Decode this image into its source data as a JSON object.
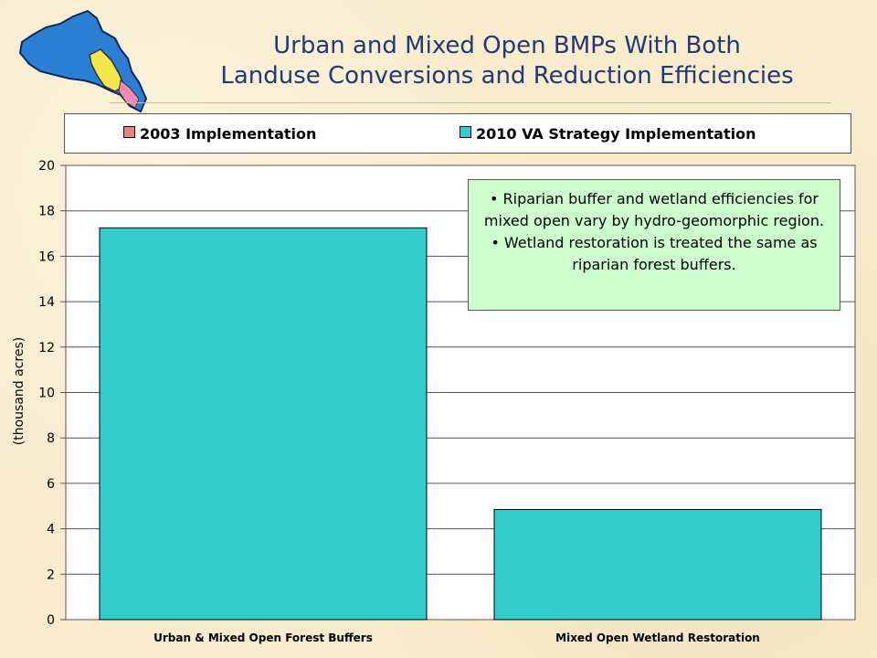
{
  "title_line1": "Urban and Mixed Open BMPs With Both",
  "title_line2": "Landuse Conversions and Reduction Efficiencies",
  "colors": {
    "title": "#1f3a78",
    "series_2003": "#f08080",
    "series_2010": "#33cccc",
    "note_bg": "#ccffcc"
  },
  "note": {
    "line1": "• Riparian buffer and wetland efficiencies for mixed open vary by hydro-geomorphic region.",
    "line2": "• Wetland restoration is treated the same as riparian forest buffers."
  },
  "chart_data": {
    "type": "bar",
    "title": "",
    "ylabel": "(thousand acres)",
    "xlabel": "",
    "ylim": [
      0,
      20
    ],
    "yticks": [
      "0",
      "2",
      "4",
      "6",
      "8",
      "10",
      "12",
      "14",
      "16",
      "18",
      "20"
    ],
    "grid": true,
    "legend_position": "top",
    "categories": [
      "Urban & Mixed Open Forest Buffers",
      "Mixed Open Wetland Restoration"
    ],
    "series": [
      {
        "name": "2003 Implementation",
        "color": "#f08080",
        "values": [
          0,
          0
        ]
      },
      {
        "name": "2010 VA Strategy Implementation",
        "color": "#33cccc",
        "values": [
          17.25,
          4.85
        ]
      }
    ]
  }
}
